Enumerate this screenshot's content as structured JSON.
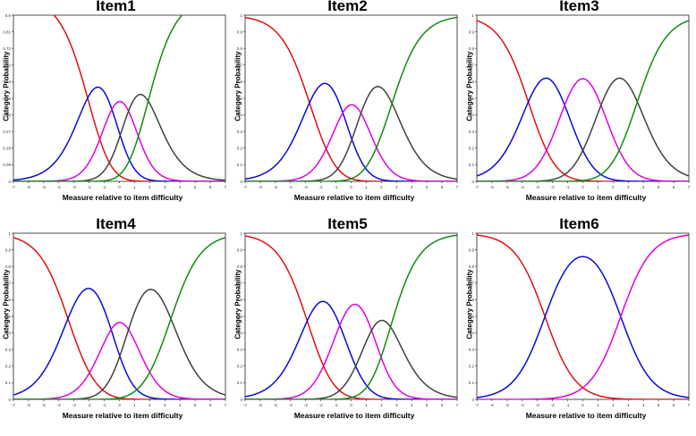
{
  "chart_data": [
    {
      "type": "line",
      "title": "Item1",
      "xlabel": "Measure relative to item difficulty",
      "ylabel": "Category Probability",
      "xlim": [
        -7,
        7
      ],
      "ylim": [
        0,
        0.9
      ],
      "xticks": [
        "-7",
        "-6",
        "-5",
        "-4",
        "-3",
        "-2",
        "-1",
        "0",
        "1",
        "2",
        "3",
        "4",
        "5",
        "6",
        "7"
      ],
      "yticks": [
        "0",
        "0.09",
        "0.18",
        "0.27",
        "0.36",
        "0.45",
        "0.54",
        "0.63",
        "0.72",
        "0.81",
        "0.9"
      ],
      "thresholds": [
        -2.1,
        -0.5,
        0.6,
        1.9
      ],
      "colors": [
        "#e01010",
        "#0a0ad8",
        "#e000e0",
        "#404040",
        "#108a10"
      ]
    },
    {
      "type": "line",
      "title": "Item2",
      "xlabel": "Measure relative to item difficulty",
      "ylabel": "Category Probability",
      "xlim": [
        -7,
        7
      ],
      "ylim": [
        0,
        1
      ],
      "xticks": [
        "-7",
        "-6",
        "-5",
        "-4",
        "-3",
        "-2",
        "-1",
        "0",
        "1",
        "2",
        "3",
        "4",
        "5",
        "6",
        "7"
      ],
      "yticks": [
        "0",
        "0.1",
        "0.2",
        "0.3",
        "0.4",
        "0.5",
        "0.6",
        "0.7",
        "0.8",
        "0.9",
        "1"
      ],
      "thresholds": [
        -2.75,
        -0.55,
        0.65,
        2.7
      ],
      "colors": [
        "#e01010",
        "#0a0ad8",
        "#e000e0",
        "#404040",
        "#108a10"
      ]
    },
    {
      "type": "line",
      "title": "Item3",
      "xlabel": "Measure relative to item difficulty",
      "ylabel": "Category Probability",
      "xlim": [
        -7,
        7
      ],
      "ylim": [
        0,
        1
      ],
      "xticks": [
        "-7",
        "-6",
        "-5",
        "-4",
        "-3",
        "-2",
        "-1",
        "0",
        "1",
        "2",
        "3",
        "4",
        "5",
        "6",
        "7"
      ],
      "yticks": [
        "0",
        "0.1",
        "0.2",
        "0.3",
        "0.4",
        "0.5",
        "0.6",
        "0.7",
        "0.8",
        "0.9",
        "1"
      ],
      "thresholds": [
        -3.6,
        -1.2,
        1.2,
        3.6
      ],
      "colors": [
        "#e01010",
        "#0a0ad8",
        "#e000e0",
        "#404040",
        "#108a10"
      ]
    },
    {
      "type": "line",
      "title": "Item4",
      "xlabel": "Measure relative to item difficulty",
      "ylabel": "Category Probability",
      "xlim": [
        -7,
        7
      ],
      "ylim": [
        0,
        1
      ],
      "xticks": [
        "-7",
        "-6",
        "-5",
        "-4",
        "-3",
        "-2",
        "-1",
        "0",
        "1",
        "2",
        "3",
        "4",
        "5",
        "6",
        "7"
      ],
      "yticks": [
        "0",
        "0.1",
        "0.2",
        "0.3",
        "0.4",
        "0.5",
        "0.6",
        "0.7",
        "0.8",
        "0.9",
        "1"
      ],
      "thresholds": [
        -3.4,
        -0.55,
        0.6,
        3.4
      ],
      "colors": [
        "#e01010",
        "#0a0ad8",
        "#e000e0",
        "#404040",
        "#108a10"
      ]
    },
    {
      "type": "line",
      "title": "Item5",
      "xlabel": "Measure relative to item difficulty",
      "ylabel": "Category Probability",
      "xlim": [
        -7,
        7
      ],
      "ylim": [
        0,
        1
      ],
      "xticks": [
        "-7",
        "-6",
        "-5",
        "-4",
        "-3",
        "-2",
        "-1",
        "0",
        "1",
        "2",
        "3",
        "4",
        "5",
        "6",
        "7"
      ],
      "yticks": [
        "0",
        "0.1",
        "0.2",
        "0.3",
        "0.4",
        "0.5",
        "0.6",
        "0.7",
        "0.8",
        "0.9",
        "1"
      ],
      "thresholds": [
        -2.9,
        -0.75,
        1.35,
        2.6
      ],
      "colors": [
        "#e01010",
        "#0a0ad8",
        "#e000e0",
        "#404040",
        "#108a10"
      ]
    },
    {
      "type": "line",
      "title": "Item6",
      "xlabel": "Measure relative to item difficulty",
      "ylabel": "Category Probability",
      "xlim": [
        -7,
        7
      ],
      "ylim": [
        0,
        1
      ],
      "xticks": [
        "-7",
        "-6",
        "-5",
        "-4",
        "-3",
        "-2",
        "-1",
        "0",
        "1",
        "2",
        "3",
        "4",
        "5",
        "6",
        "7"
      ],
      "yticks": [
        "0",
        "0.1",
        "0.2",
        "0.3",
        "0.4",
        "0.5",
        "0.6",
        "0.7",
        "0.8",
        "0.9",
        "1"
      ],
      "thresholds": [
        -2.5,
        2.5
      ],
      "colors": [
        "#e01010",
        "#0a0ad8",
        "#e000e0"
      ]
    }
  ]
}
